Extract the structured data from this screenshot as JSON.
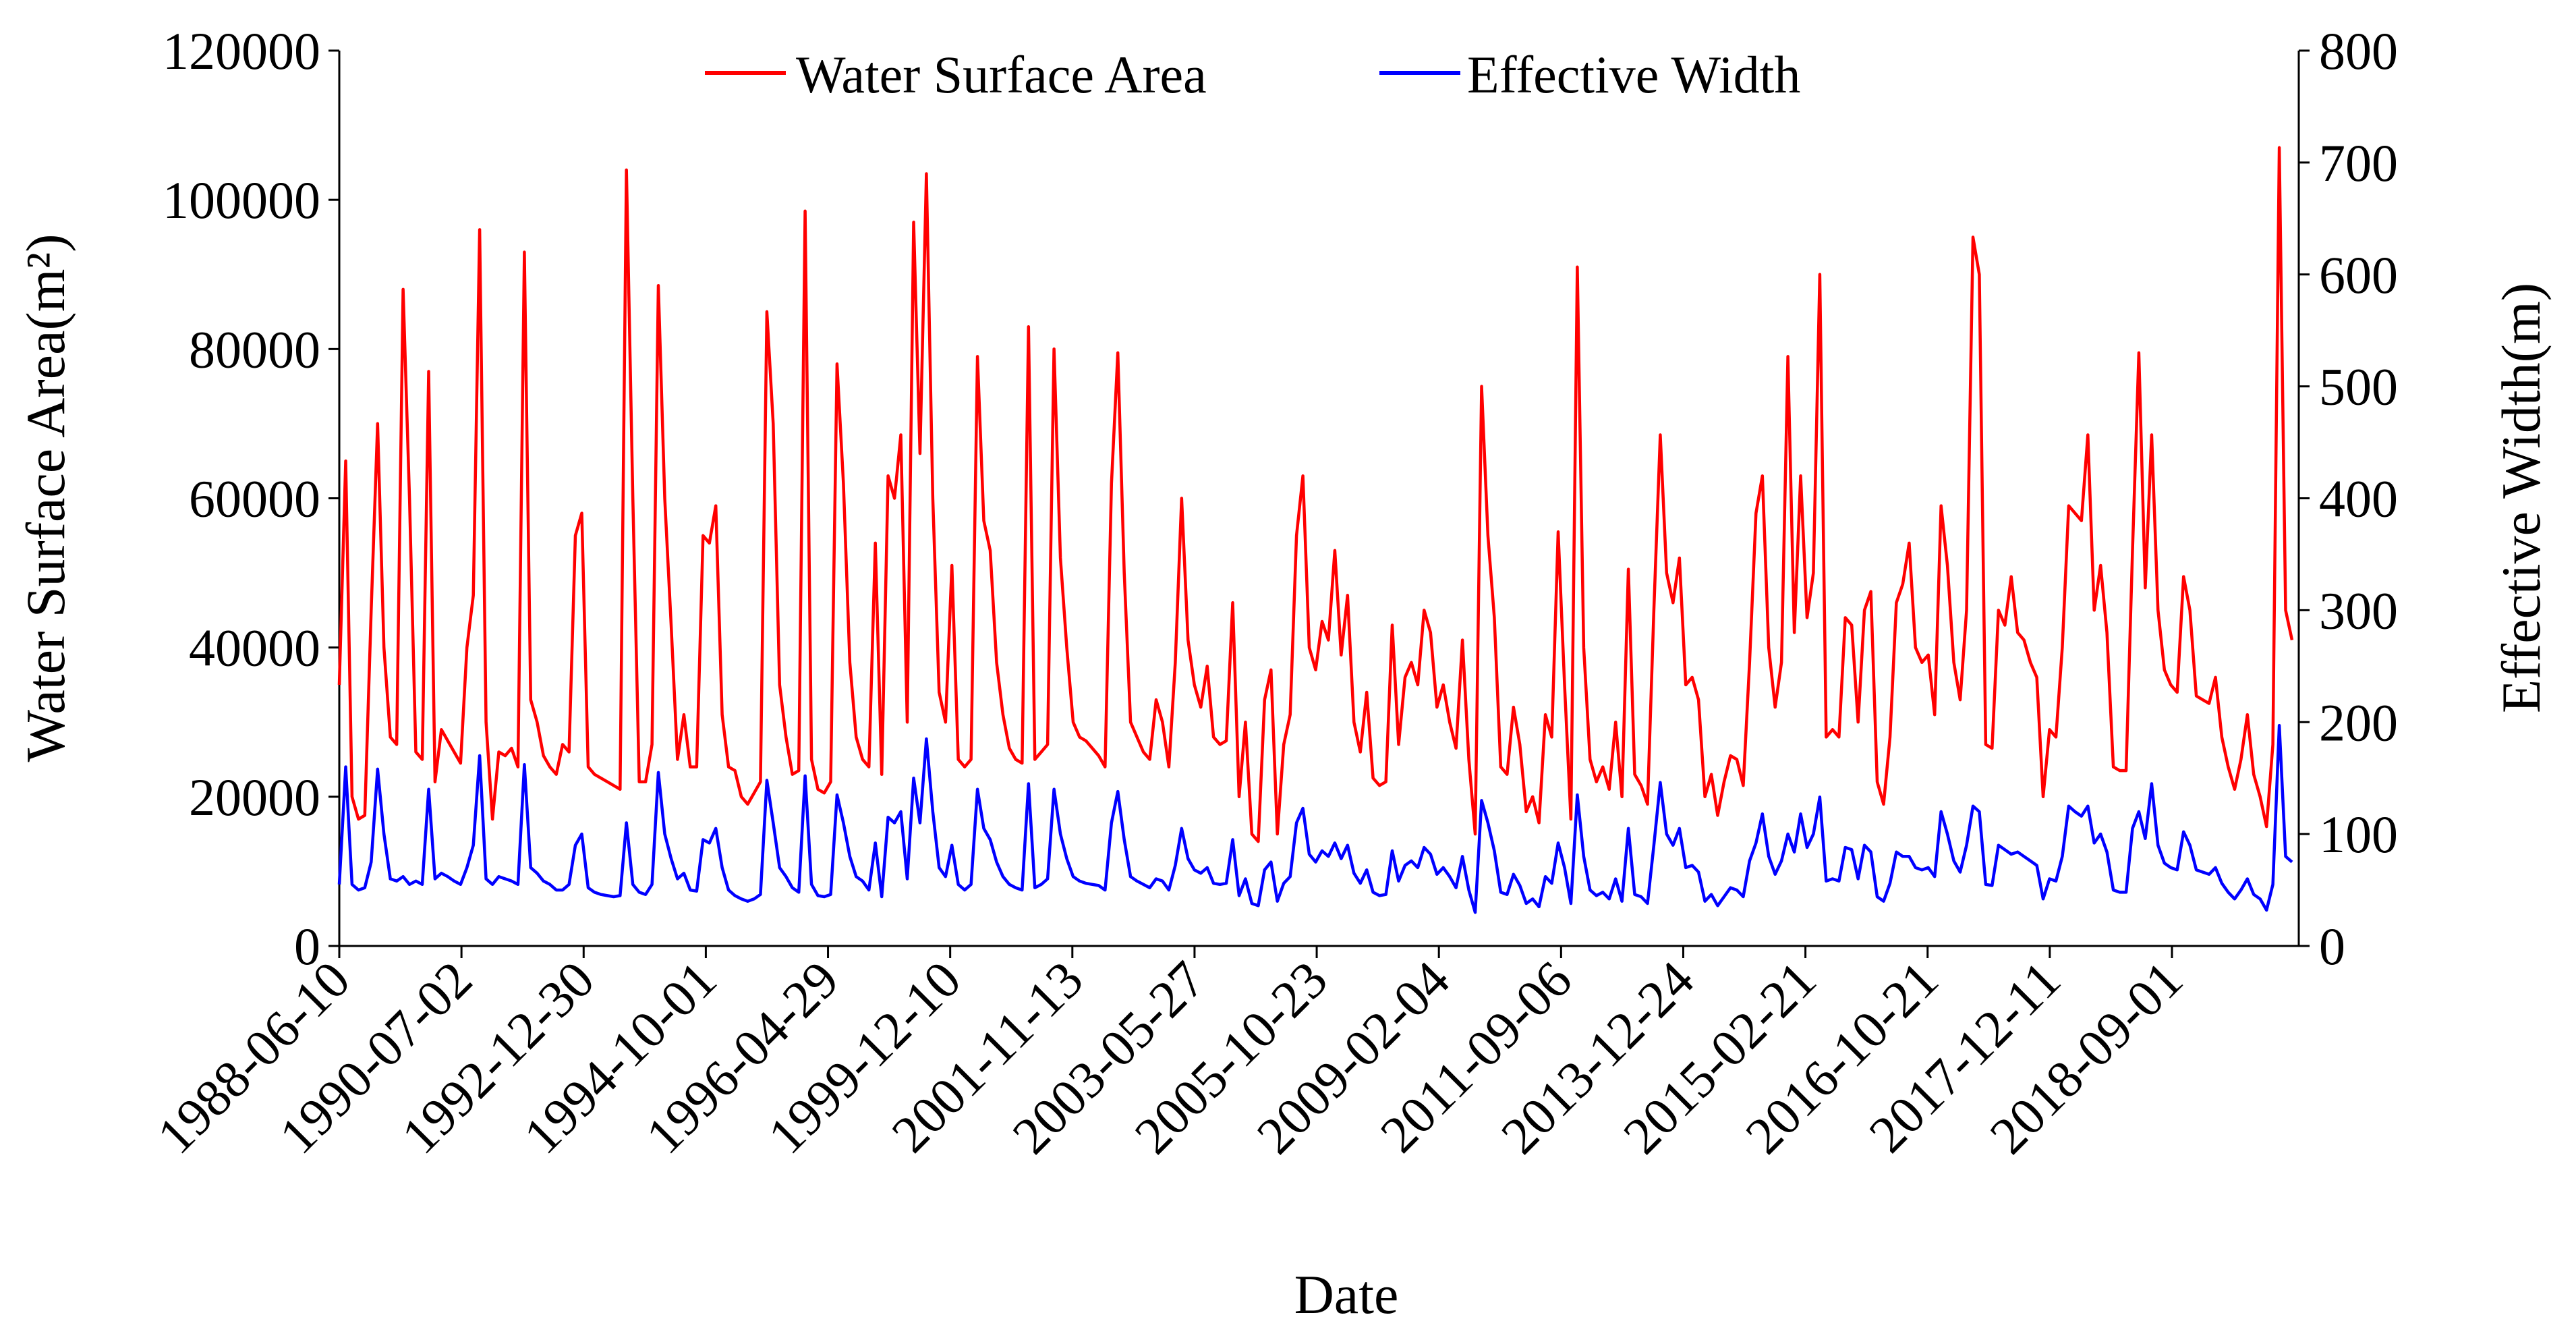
{
  "chart_data": {
    "type": "line",
    "xlabel": "Date",
    "ylabel_left": "Water Surface Area(m²)",
    "ylabel_right": "Effective Width(m)",
    "ylim_left": [
      0,
      120000
    ],
    "ylim_right": [
      0,
      800
    ],
    "yticks_left": [
      "0",
      "20000",
      "40000",
      "60000",
      "80000",
      "100000",
      "120000"
    ],
    "yticks_right": [
      "0",
      "100",
      "200",
      "300",
      "400",
      "500",
      "600",
      "700",
      "800"
    ],
    "xticks": [
      "1988-06-10",
      "1990-07-02",
      "1992-12-30",
      "1994-10-01",
      "1996-04-29",
      "1999-12-10",
      "2001-11-13",
      "2003-05-27",
      "2005-10-23",
      "2009-02-04",
      "2011-09-06",
      "2013-12-24",
      "2015-02-21",
      "2016-10-21",
      "2017-12-11",
      "2018-09-01"
    ],
    "grid": false,
    "legend_position": "top-center",
    "series": [
      {
        "name": "Water Surface Area",
        "axis": "left",
        "color": "#ff0000",
        "values": [
          35000,
          65000,
          20000,
          17000,
          17500,
          45000,
          70000,
          40000,
          28000,
          27000,
          88000,
          60000,
          26000,
          25000,
          77000,
          22000,
          29000,
          27500,
          26000,
          24500,
          40000,
          47000,
          96000,
          30000,
          17000,
          26000,
          25500,
          26500,
          24000,
          93000,
          33000,
          30000,
          25500,
          24000,
          23000,
          27000,
          26000,
          55000,
          58000,
          24000,
          23000,
          22500,
          22000,
          21500,
          21000,
          104000,
          60000,
          22000,
          22000,
          27000,
          88500,
          60000,
          43000,
          25000,
          31000,
          24000,
          24000,
          55000,
          54000,
          59000,
          31000,
          24000,
          23500,
          20000,
          19000,
          20500,
          22000,
          85000,
          70000,
          35000,
          28000,
          23000,
          23500,
          98500,
          25000,
          21000,
          20500,
          22000,
          78000,
          62000,
          38000,
          28000,
          25000,
          24000,
          54000,
          23000,
          63000,
          60000,
          68500,
          30000,
          97000,
          66000,
          103500,
          60000,
          34000,
          30000,
          51000,
          25000,
          24000,
          25000,
          79000,
          57000,
          53000,
          38000,
          31000,
          26500,
          25000,
          24500,
          83000,
          25000,
          26000,
          27000,
          80000,
          52000,
          40000,
          30000,
          28000,
          27500,
          26500,
          25500,
          24000,
          62000,
          79500,
          50000,
          30000,
          28000,
          26000,
          25000,
          33000,
          30000,
          24000,
          38000,
          60000,
          41000,
          35000,
          32000,
          37500,
          28000,
          27000,
          27500,
          46000,
          20000,
          30000,
          15000,
          14000,
          33000,
          37000,
          15000,
          27000,
          31000,
          55000,
          63000,
          40000,
          37000,
          43500,
          41000,
          53000,
          39000,
          47000,
          30000,
          26000,
          34000,
          22500,
          21500,
          22000,
          43000,
          27000,
          36000,
          38000,
          35000,
          45000,
          42000,
          32000,
          35000,
          30000,
          26500,
          41000,
          25000,
          15000,
          75000,
          55000,
          44000,
          24000,
          23000,
          32000,
          27000,
          18000,
          20000,
          16500,
          31000,
          28000,
          55500,
          35000,
          17000,
          91000,
          40000,
          25000,
          22000,
          24000,
          21000,
          30000,
          20000,
          50500,
          23000,
          21500,
          19000,
          45000,
          68500,
          50000,
          46000,
          52000,
          35000,
          36000,
          33000,
          20000,
          23000,
          17500,
          22000,
          25500,
          25000,
          21500,
          38000,
          58000,
          63000,
          40000,
          32000,
          38000,
          79000,
          42000,
          63000,
          44000,
          50000,
          90000,
          28000,
          29000,
          28000,
          44000,
          43000,
          30000,
          45000,
          47500,
          22000,
          19000,
          28000,
          46000,
          48500,
          54000,
          40000,
          38000,
          39000,
          31000,
          59000,
          51000,
          38000,
          33000,
          45000,
          95000,
          90000,
          27000,
          26500,
          45000,
          43000,
          49500,
          42000,
          41000,
          38000,
          36000,
          20000,
          29000,
          28000,
          40000,
          59000,
          58000,
          57000,
          68500,
          45000,
          51000,
          42000,
          24000,
          23500,
          23500,
          53000,
          79500,
          48000,
          68500,
          45000,
          37000,
          35000,
          34000,
          49500,
          45000,
          33500,
          33000,
          32500,
          36000,
          28000,
          24000,
          21000,
          25000,
          31000,
          23000,
          20000,
          16000,
          27000,
          107000,
          45000,
          41000
        ]
      },
      {
        "name": "Effective Width",
        "axis": "right",
        "color": "#0000ff",
        "values": [
          55,
          160,
          55,
          50,
          52,
          75,
          158,
          100,
          60,
          58,
          62,
          55,
          58,
          55,
          140,
          60,
          65,
          62,
          58,
          55,
          70,
          90,
          170,
          60,
          55,
          62,
          60,
          58,
          55,
          162,
          70,
          65,
          58,
          55,
          50,
          50,
          55,
          90,
          100,
          52,
          48,
          46,
          45,
          44,
          45,
          110,
          55,
          48,
          46,
          55,
          155,
          100,
          78,
          60,
          65,
          50,
          49,
          95,
          92,
          105,
          70,
          50,
          45,
          42,
          40,
          42,
          46,
          148,
          110,
          70,
          62,
          52,
          48,
          152,
          55,
          45,
          44,
          46,
          135,
          110,
          80,
          62,
          58,
          50,
          92,
          44,
          115,
          110,
          120,
          60,
          150,
          110,
          185,
          120,
          70,
          62,
          90,
          55,
          50,
          55,
          140,
          105,
          95,
          75,
          62,
          55,
          52,
          50,
          145,
          52,
          55,
          60,
          140,
          100,
          78,
          62,
          58,
          56,
          55,
          54,
          50,
          110,
          138,
          95,
          62,
          58,
          55,
          52,
          60,
          58,
          50,
          72,
          105,
          78,
          68,
          65,
          70,
          56,
          55,
          56,
          95,
          45,
          60,
          38,
          36,
          68,
          75,
          40,
          56,
          62,
          110,
          123,
          82,
          75,
          85,
          80,
          92,
          78,
          90,
          65,
          56,
          68,
          48,
          45,
          46,
          85,
          58,
          72,
          76,
          70,
          88,
          82,
          64,
          70,
          62,
          52,
          80,
          50,
          30,
          130,
          110,
          85,
          48,
          46,
          64,
          54,
          38,
          42,
          35,
          62,
          56,
          92,
          70,
          38,
          135,
          80,
          50,
          45,
          48,
          42,
          60,
          40,
          105,
          46,
          44,
          38,
          90,
          146,
          100,
          90,
          105,
          70,
          72,
          66,
          40,
          46,
          36,
          44,
          52,
          50,
          44,
          76,
          92,
          118,
          80,
          64,
          76,
          100,
          84,
          118,
          88,
          100,
          133,
          58,
          60,
          58,
          88,
          86,
          60,
          90,
          84,
          44,
          40,
          56,
          84,
          80,
          80,
          70,
          68,
          70,
          62,
          120,
          100,
          76,
          66,
          90,
          125,
          120,
          55,
          54,
          90,
          86,
          82,
          84,
          80,
          76,
          72,
          42,
          60,
          58,
          80,
          125,
          120,
          116,
          125,
          92,
          100,
          84,
          50,
          48,
          48,
          105,
          120,
          96,
          145,
          90,
          74,
          70,
          68,
          102,
          90,
          68,
          66,
          64,
          70,
          56,
          48,
          42,
          50,
          60,
          46,
          42,
          32,
          55,
          197,
          80,
          75
        ]
      }
    ]
  }
}
